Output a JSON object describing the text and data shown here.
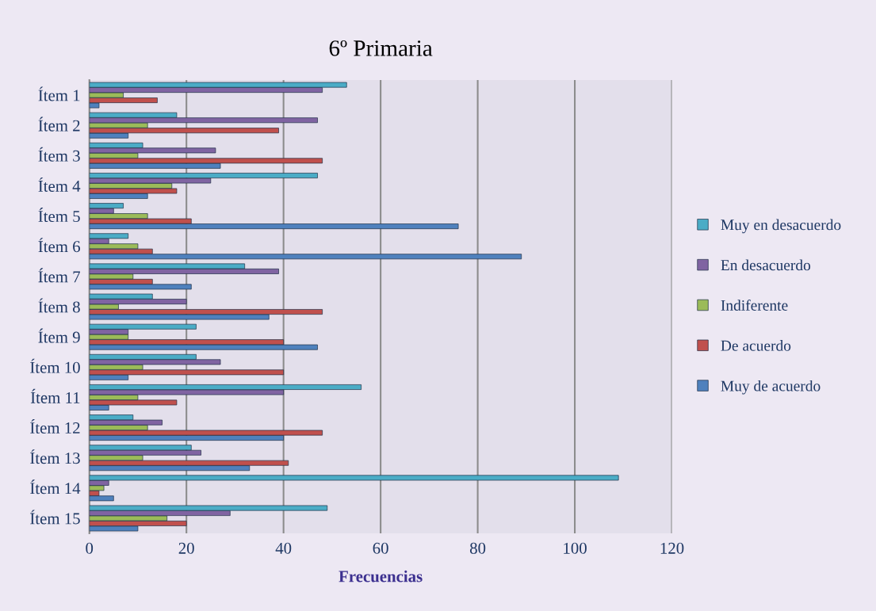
{
  "chart_data": {
    "type": "bar",
    "orientation": "horizontal",
    "title": "6º Primaria",
    "xlabel": "Frecuencias",
    "categories": [
      "Ítem 1",
      "Ítem 2",
      "Ítem 3",
      "Ítem 4",
      "Ítem 5",
      "Ítem 6",
      "Ítem 7",
      "Ítem 8",
      "Ítem 9",
      "Ítem 10",
      "Ítem 11",
      "Ítem 12",
      "Ítem 13",
      "Ítem 14",
      "Ítem 15"
    ],
    "series": [
      {
        "name": "Muy de acuerdo",
        "color": "#4f81bd",
        "values": [
          2,
          8,
          27,
          12,
          76,
          89,
          21,
          37,
          47,
          8,
          4,
          40,
          33,
          5,
          10
        ]
      },
      {
        "name": "De acuerdo",
        "color": "#c0504d",
        "values": [
          14,
          39,
          48,
          18,
          21,
          13,
          13,
          48,
          40,
          40,
          18,
          48,
          41,
          2,
          20
        ]
      },
      {
        "name": "Indiferente",
        "color": "#9bbb59",
        "values": [
          7,
          12,
          10,
          17,
          12,
          10,
          9,
          6,
          8,
          11,
          10,
          12,
          11,
          3,
          16
        ]
      },
      {
        "name": "En desacuerdo",
        "color": "#8064a2",
        "values": [
          48,
          47,
          26,
          25,
          5,
          4,
          39,
          20,
          8,
          27,
          40,
          15,
          23,
          4,
          29
        ]
      },
      {
        "name": "Muy en desacuerdo",
        "color": "#4bacc6",
        "values": [
          53,
          18,
          11,
          47,
          7,
          8,
          32,
          13,
          22,
          22,
          56,
          9,
          21,
          109,
          49
        ]
      }
    ],
    "xlim": [
      0,
      120
    ],
    "xticks": [
      0,
      20,
      40,
      60,
      80,
      100,
      120
    ],
    "grid": "x",
    "legend": "right"
  }
}
